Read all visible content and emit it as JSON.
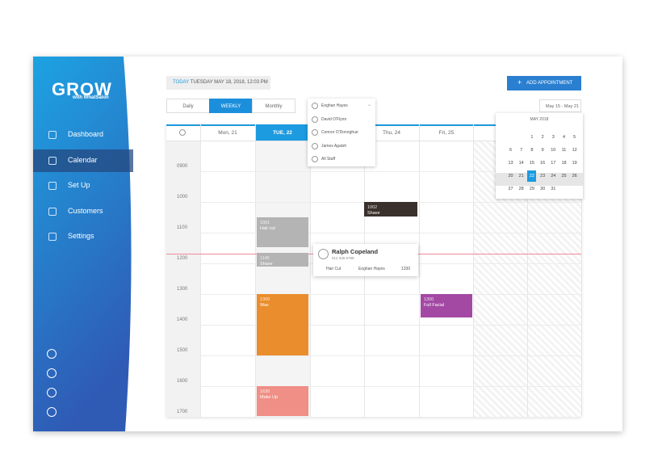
{
  "logo": {
    "title": "GROW",
    "subtitle": "with WhatSalon"
  },
  "nav": [
    "Dashboard",
    "Calendar",
    "Set Up",
    "Customers",
    "Settings"
  ],
  "today": {
    "label": "TODAY",
    "date": "TUESDAY MAY 18, 2018, 12:03 PM"
  },
  "add_button": "ADD APPOINTMENT",
  "view_tabs": [
    "Daily",
    "WEEKLY",
    "Monthly"
  ],
  "staff_dropdown": [
    "Eoghan Hayes",
    "David O'Flynn",
    "Connor O'Donoghue",
    "James Agalsh",
    "All Staff"
  ],
  "date_range": "May 15 - May 21",
  "mini_calendar": {
    "month": "MAY 2018",
    "weeks": [
      [
        "",
        "",
        "1",
        "2",
        "3",
        "4",
        "5"
      ],
      [
        "6",
        "7",
        "8",
        "9",
        "10",
        "11",
        "12"
      ],
      [
        "13",
        "14",
        "15",
        "16",
        "17",
        "18",
        "19"
      ],
      [
        "20",
        "21",
        "22",
        "23",
        "24",
        "25",
        "26"
      ],
      [
        "27",
        "28",
        "29",
        "30",
        "31",
        "",
        ""
      ]
    ]
  },
  "day_headers": [
    {
      "label": "Mon, 21",
      "col": 0
    },
    {
      "label": "TUE, 22",
      "col": 1
    },
    {
      "label": "Thu, 24",
      "col": 3
    },
    {
      "label": "Fri, 25",
      "col": 4
    }
  ],
  "times": [
    "0900",
    "1000",
    "1100",
    "1200",
    "1300",
    "1400",
    "1500",
    "1600",
    "1700"
  ],
  "appointments": [
    {
      "time": "1002",
      "service": "Shave"
    },
    {
      "time": "1001",
      "service": "Hair cut"
    },
    {
      "time": "1145",
      "service": "Shave"
    },
    {
      "time": "1300",
      "service": "Full Facial"
    },
    {
      "time": "1300",
      "service": "Wax"
    },
    {
      "time": "1630",
      "service": "Make Up"
    }
  ],
  "popup": {
    "name": "Ralph Copeland",
    "phone": "012 345 6789",
    "service": "Hair Cut",
    "staff": "Eoghan Hayes",
    "time": "1330"
  }
}
